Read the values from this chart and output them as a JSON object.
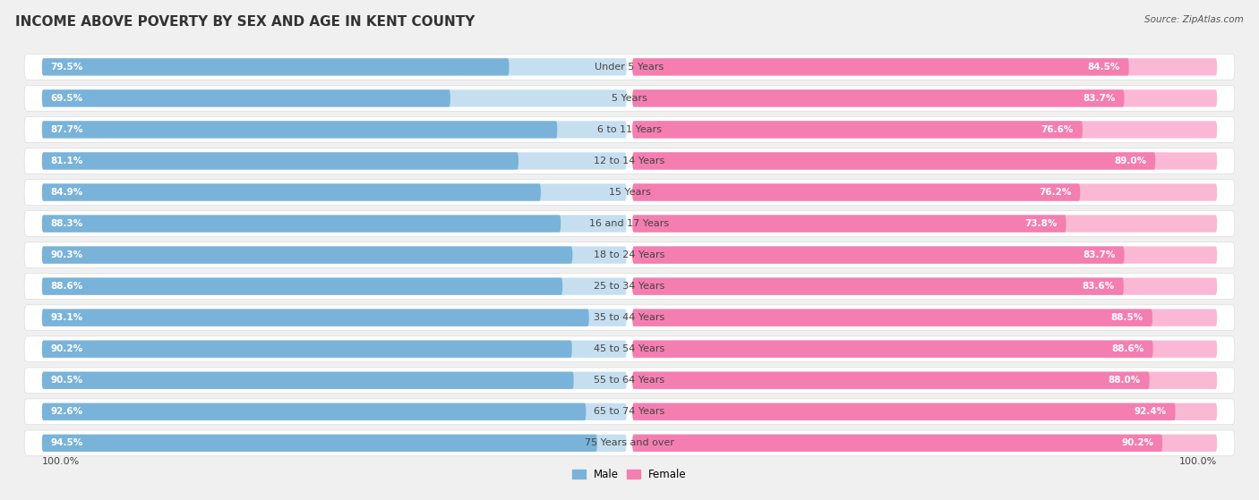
{
  "title": "INCOME ABOVE POVERTY BY SEX AND AGE IN KENT COUNTY",
  "source": "Source: ZipAtlas.com",
  "categories": [
    "Under 5 Years",
    "5 Years",
    "6 to 11 Years",
    "12 to 14 Years",
    "15 Years",
    "16 and 17 Years",
    "18 to 24 Years",
    "25 to 34 Years",
    "35 to 44 Years",
    "45 to 54 Years",
    "55 to 64 Years",
    "65 to 74 Years",
    "75 Years and over"
  ],
  "male_values": [
    79.5,
    69.5,
    87.7,
    81.1,
    84.9,
    88.3,
    90.3,
    88.6,
    93.1,
    90.2,
    90.5,
    92.6,
    94.5
  ],
  "female_values": [
    84.5,
    83.7,
    76.6,
    89.0,
    76.2,
    73.8,
    83.7,
    83.6,
    88.5,
    88.6,
    88.0,
    92.4,
    90.2
  ],
  "male_color": "#7ab3d9",
  "female_color": "#f47eb0",
  "male_color_light": "#c5dff0",
  "female_color_light": "#fbb8d4",
  "male_label": "Male",
  "female_label": "Female",
  "background_color": "#f0f0f0",
  "row_bg_color": "#ffffff",
  "title_fontsize": 11,
  "label_fontsize": 8,
  "value_fontsize": 7.5,
  "source_fontsize": 7.5
}
